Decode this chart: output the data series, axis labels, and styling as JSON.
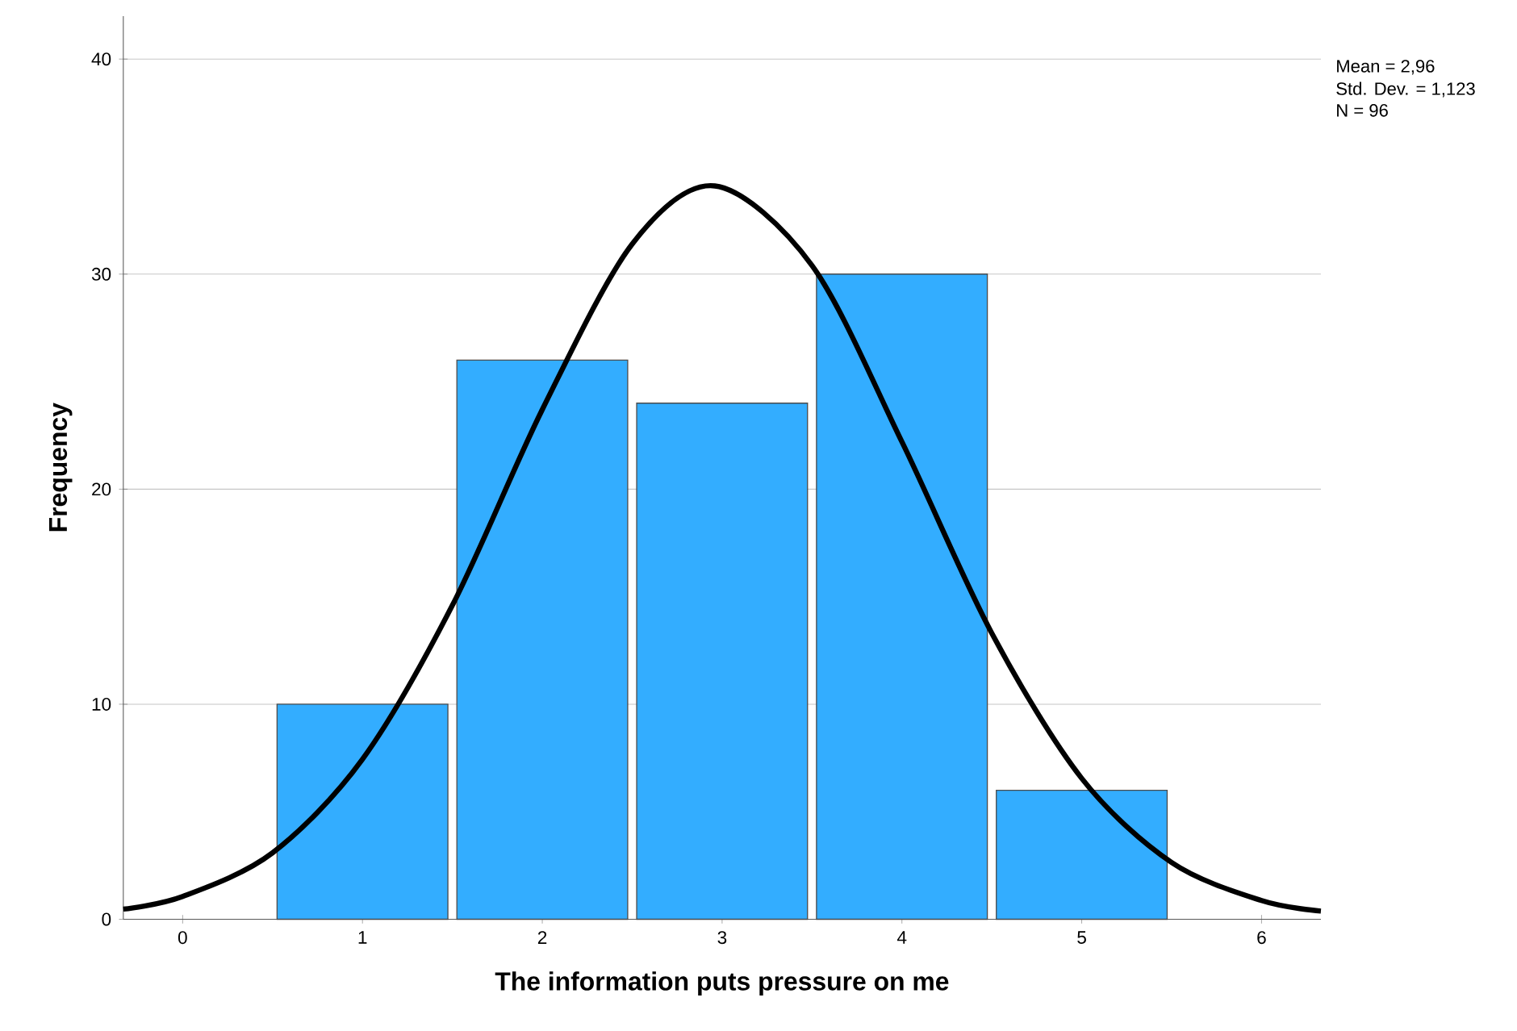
{
  "chart_data": {
    "type": "histogram",
    "xlabel": "The information puts pressure on me",
    "ylabel": "Frequency",
    "bins": [
      0.5,
      1.5,
      2.5,
      3.5,
      4.5,
      5.5
    ],
    "values": [
      10,
      26,
      24,
      30,
      6
    ],
    "color": "#33adff",
    "series": [
      {
        "type": "line",
        "color": "#000000",
        "x": [
          -0.33,
          0,
          0.5,
          1,
          1.5,
          2,
          2.5,
          2.96,
          3.5,
          4,
          4.5,
          5,
          5.5,
          6,
          6.33
        ],
        "values": [
          0.47,
          1.06,
          3.09,
          7.44,
          14.6,
          23.7,
          31.4,
          34.1,
          30.4,
          22.2,
          13.3,
          6.55,
          2.64,
          0.87,
          0.38
        ]
      }
    ],
    "xlim": [
      -0.33,
      6.33
    ],
    "ylim": [
      0,
      42
    ],
    "xticks": [
      0,
      1,
      2,
      3,
      4,
      5,
      6
    ],
    "yticks": [
      0,
      10,
      20,
      30,
      40
    ],
    "grid": "y",
    "annotations": [
      "Mean = 2,96",
      "Std. Dev. = 1,123",
      "N = 96"
    ]
  }
}
